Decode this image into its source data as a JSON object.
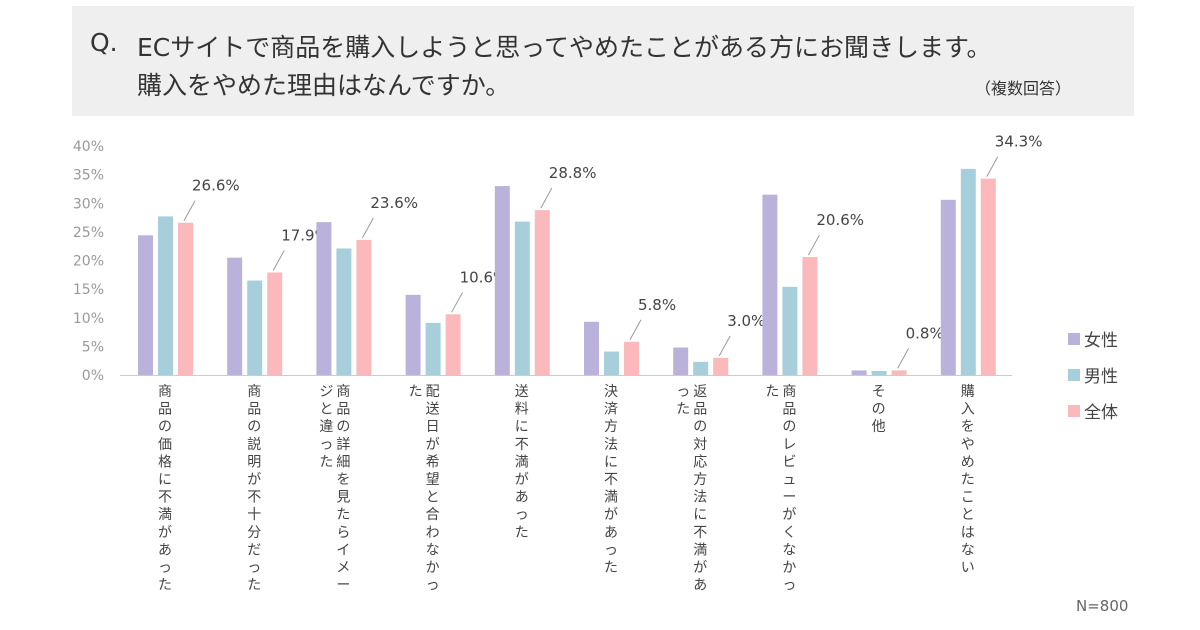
{
  "question": {
    "prefix": "Q.",
    "line1": "ECサイトで商品を購入しようと思ってやめたことがある方にお聞きします。",
    "line2": "購入をやめた理由はなんですか。",
    "note": "（複数回答）"
  },
  "sample": "N=800",
  "colors": {
    "female": "#bbb2db",
    "male": "#a7cfdb",
    "total": "#fbb9bc",
    "axis": "#cccccc",
    "tick_text": "#999999",
    "label_text": "#444444",
    "leader": "#999999"
  },
  "chart_data": {
    "type": "bar",
    "ylim": [
      0,
      40
    ],
    "yticks": [
      "0%",
      "5%",
      "10%",
      "15%",
      "20%",
      "25%",
      "30%",
      "35%",
      "40%"
    ],
    "categories": [
      "商品の価格に不満があった",
      "商品の説明が不十分だった",
      "商品の詳細を見たらイメージと違った",
      "配送日が希望と合わなかった",
      "送料に不満があった",
      "決済方法に不満があった",
      "返品の対応方法に不満があった",
      "商品のレビューがくなかった",
      "その他",
      "購入をやめたことはない"
    ],
    "series": [
      {
        "name": "女性",
        "values": [
          24.4,
          20.5,
          26.7,
          14.0,
          33.0,
          9.3,
          4.8,
          31.5,
          0.8,
          30.6
        ]
      },
      {
        "name": "男性",
        "values": [
          27.7,
          16.5,
          22.1,
          9.1,
          26.8,
          4.1,
          2.3,
          15.4,
          0.7,
          36.0
        ]
      },
      {
        "name": "全体",
        "values": [
          26.6,
          17.9,
          23.6,
          10.6,
          28.8,
          5.8,
          3.0,
          20.6,
          0.8,
          34.3
        ]
      }
    ],
    "data_labels": [
      "26.6%",
      "17.9%",
      "23.6%",
      "10.6%",
      "28.8%",
      "5.8%",
      "3.0%",
      "20.6%",
      "0.8%",
      "34.3%"
    ],
    "legend": [
      "女性",
      "男性",
      "全体"
    ],
    "legend_position": "right"
  }
}
